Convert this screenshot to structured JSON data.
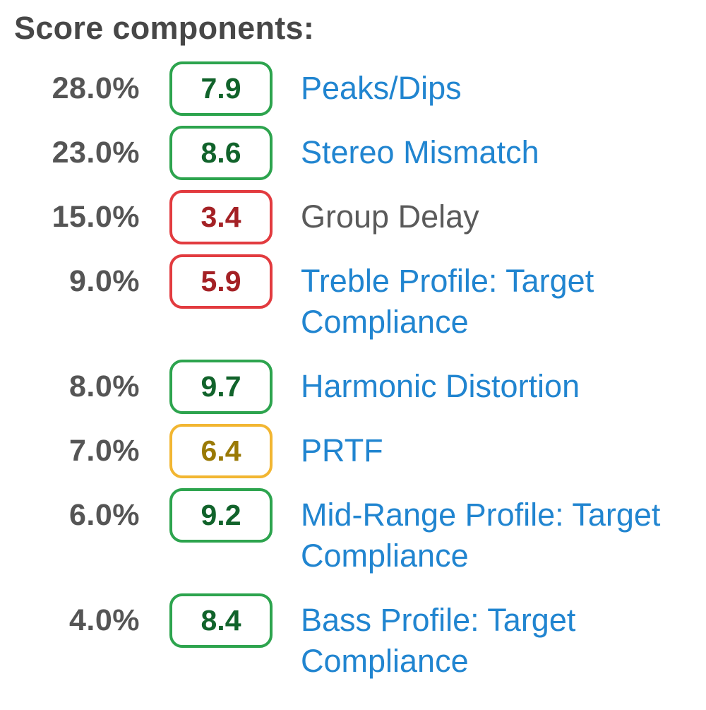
{
  "heading": "Score components:",
  "colors": {
    "heading_gray": "#474747",
    "weight_gray": "#555555",
    "link_blue": "#2185d0",
    "plain_gray": "#5a5a5a",
    "good_border": "#2da44e",
    "good_text": "#11632b",
    "bad_border": "#e23b3f",
    "bad_text": "#a42125",
    "warn_border": "#f2b632",
    "warn_text": "#9a7a06"
  },
  "components": [
    {
      "weight": "28.0%",
      "score": "7.9",
      "rating": "good",
      "label": "Peaks/Dips",
      "label_type": "link"
    },
    {
      "weight": "23.0%",
      "score": "8.6",
      "rating": "good",
      "label": "Stereo Mismatch",
      "label_type": "link"
    },
    {
      "weight": "15.0%",
      "score": "3.4",
      "rating": "bad",
      "label": "Group Delay",
      "label_type": "plain"
    },
    {
      "weight": "9.0%",
      "score": "5.9",
      "rating": "bad",
      "label": "Treble Profile: Target Compliance",
      "label_type": "link"
    },
    {
      "weight": "8.0%",
      "score": "9.7",
      "rating": "good",
      "label": "Harmonic Distortion",
      "label_type": "link"
    },
    {
      "weight": "7.0%",
      "score": "6.4",
      "rating": "warn",
      "label": "PRTF",
      "label_type": "link"
    },
    {
      "weight": "6.0%",
      "score": "9.2",
      "rating": "good",
      "label": "Mid-Range Profile: Target Compliance",
      "label_type": "link"
    },
    {
      "weight": "4.0%",
      "score": "8.4",
      "rating": "good",
      "label": "Bass Profile: Target Compliance",
      "label_type": "link"
    }
  ]
}
